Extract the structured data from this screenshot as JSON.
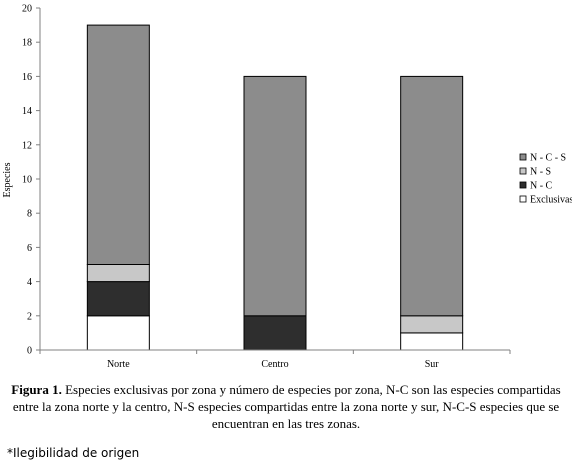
{
  "chart_data": {
    "type": "bar",
    "stacked": true,
    "categories": [
      "Norte",
      "Centro",
      "Sur"
    ],
    "series": [
      {
        "name": "Exclusivas",
        "color": "#ffffff",
        "values": [
          2,
          0,
          1
        ]
      },
      {
        "name": "N - C",
        "color": "#2e2e2e",
        "values": [
          2,
          2,
          0
        ]
      },
      {
        "name": "N - S",
        "color": "#c8c8c8",
        "values": [
          1,
          0,
          1
        ]
      },
      {
        "name": "N - C - S",
        "color": "#8c8c8c",
        "values": [
          14,
          14,
          14
        ]
      }
    ],
    "legend_order": [
      "N - C - S",
      "N - S",
      "N - C",
      "Exclusivas"
    ],
    "legend_position": "right",
    "ylabel": "Especies",
    "xlabel": "",
    "ylim": [
      0,
      20
    ],
    "yticks": [
      "0",
      "2",
      "4",
      "6",
      "8",
      "10",
      "12",
      "14",
      "16",
      "18",
      "20"
    ],
    "grid": false
  },
  "caption": {
    "label": "Figura 1.",
    "text": " Especies exclusivas por zona y número de especies por zona, N-C son las especies compartidas entre la zona norte y la centro, N-S especies compartidas entre la zona norte y sur, N-C-S especies que se encuentran en las tres zonas."
  },
  "note": "*Ilegibilidad de origen"
}
